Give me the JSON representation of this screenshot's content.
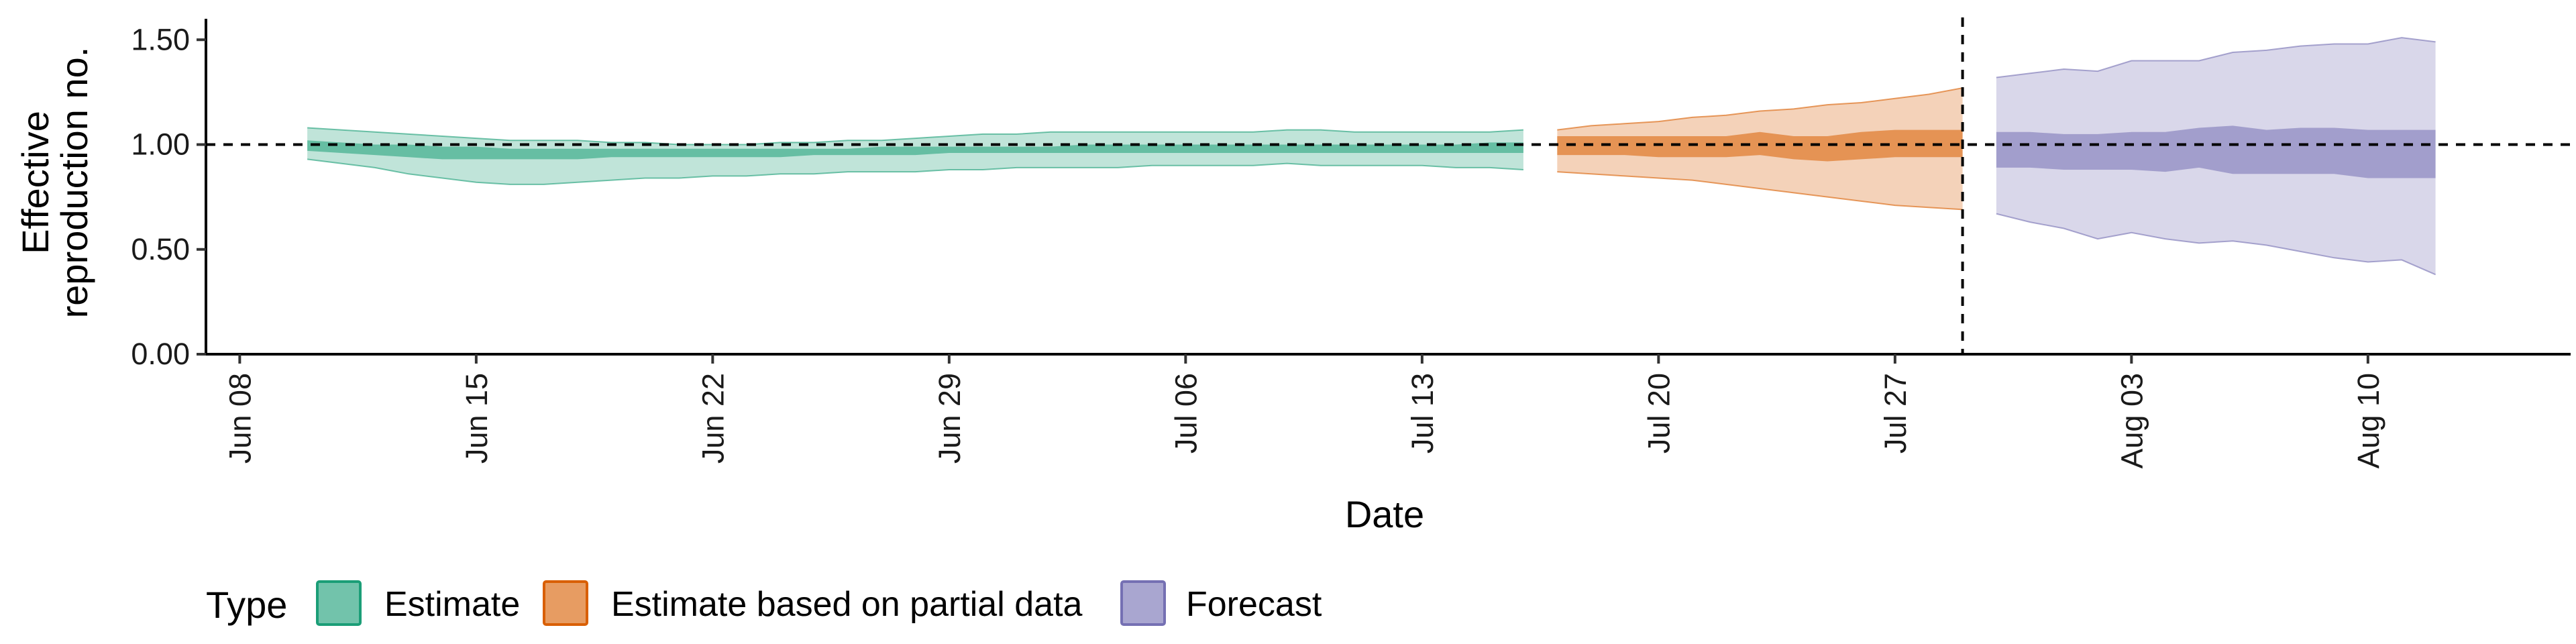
{
  "chart_data": {
    "type": "area",
    "xlabel": "Date",
    "ylabel_lines": [
      "Effective",
      "reproduction no."
    ],
    "ylim": [
      0,
      1.6
    ],
    "y_ticks": [
      0.0,
      0.5,
      1.0,
      1.5
    ],
    "y_tick_labels": [
      "0.00",
      "0.50",
      "1.00",
      "1.50"
    ],
    "x_range": [
      "2020-06-07",
      "2020-08-16"
    ],
    "x_ticks": [
      "2020-06-08",
      "2020-06-15",
      "2020-06-22",
      "2020-06-29",
      "2020-07-06",
      "2020-07-13",
      "2020-07-20",
      "2020-07-27",
      "2020-08-03",
      "2020-08-10"
    ],
    "x_tick_labels": [
      "Jun 08",
      "Jun 15",
      "Jun 22",
      "Jun 29",
      "Jul 06",
      "Jul 13",
      "Jul 20",
      "Jul 27",
      "Aug 03",
      "Aug 10"
    ],
    "reference_line_y": 1.0,
    "vertical_line_x": "2020-07-29",
    "legend": {
      "title": "Type",
      "position": "bottom-left",
      "items": [
        {
          "label": "Estimate",
          "color": "#1b9e77"
        },
        {
          "label": "Estimate based on partial data",
          "color": "#d95f02"
        },
        {
          "label": "Forecast",
          "color": "#7570b3"
        }
      ]
    },
    "series": [
      {
        "name": "Estimate",
        "color": "#1b9e77",
        "x": [
          "2020-06-10",
          "2020-06-11",
          "2020-06-12",
          "2020-06-13",
          "2020-06-14",
          "2020-06-15",
          "2020-06-16",
          "2020-06-17",
          "2020-06-18",
          "2020-06-19",
          "2020-06-20",
          "2020-06-21",
          "2020-06-22",
          "2020-06-23",
          "2020-06-24",
          "2020-06-25",
          "2020-06-26",
          "2020-06-27",
          "2020-06-28",
          "2020-06-29",
          "2020-06-30",
          "2020-07-01",
          "2020-07-02",
          "2020-07-03",
          "2020-07-04",
          "2020-07-05",
          "2020-07-06",
          "2020-07-07",
          "2020-07-08",
          "2020-07-09",
          "2020-07-10",
          "2020-07-11",
          "2020-07-12",
          "2020-07-13",
          "2020-07-14",
          "2020-07-15",
          "2020-07-16"
        ],
        "lower90": [
          0.93,
          0.91,
          0.89,
          0.86,
          0.84,
          0.82,
          0.81,
          0.81,
          0.82,
          0.83,
          0.84,
          0.84,
          0.85,
          0.85,
          0.86,
          0.86,
          0.87,
          0.87,
          0.87,
          0.88,
          0.88,
          0.89,
          0.89,
          0.89,
          0.89,
          0.9,
          0.9,
          0.9,
          0.9,
          0.91,
          0.9,
          0.9,
          0.9,
          0.9,
          0.89,
          0.89,
          0.88
        ],
        "upper90": [
          1.08,
          1.07,
          1.06,
          1.05,
          1.04,
          1.03,
          1.02,
          1.02,
          1.02,
          1.01,
          1.01,
          1.0,
          1.0,
          1.0,
          1.01,
          1.01,
          1.02,
          1.02,
          1.03,
          1.04,
          1.05,
          1.05,
          1.06,
          1.06,
          1.06,
          1.06,
          1.06,
          1.06,
          1.06,
          1.07,
          1.07,
          1.06,
          1.06,
          1.06,
          1.06,
          1.06,
          1.07
        ],
        "lower50": [
          0.97,
          0.96,
          0.95,
          0.94,
          0.93,
          0.93,
          0.93,
          0.93,
          0.93,
          0.94,
          0.94,
          0.94,
          0.94,
          0.94,
          0.94,
          0.95,
          0.95,
          0.95,
          0.95,
          0.96,
          0.96,
          0.96,
          0.96,
          0.96,
          0.96,
          0.96,
          0.96,
          0.96,
          0.96,
          0.96,
          0.96,
          0.96,
          0.96,
          0.96,
          0.96,
          0.96,
          0.96
        ],
        "upper50": [
          1.02,
          1.01,
          1.0,
          1.0,
          0.99,
          0.99,
          0.98,
          0.98,
          0.98,
          0.98,
          0.98,
          0.98,
          0.98,
          0.98,
          0.98,
          0.98,
          0.98,
          0.99,
          0.99,
          0.99,
          0.99,
          0.99,
          0.99,
          1.0,
          1.0,
          1.0,
          1.0,
          1.0,
          1.0,
          1.0,
          1.0,
          1.0,
          1.0,
          1.0,
          1.0,
          1.01,
          1.01
        ]
      },
      {
        "name": "Estimate based on partial data",
        "color": "#d95f02",
        "x": [
          "2020-07-17",
          "2020-07-18",
          "2020-07-19",
          "2020-07-20",
          "2020-07-21",
          "2020-07-22",
          "2020-07-23",
          "2020-07-24",
          "2020-07-25",
          "2020-07-26",
          "2020-07-27",
          "2020-07-28",
          "2020-07-29"
        ],
        "lower90": [
          0.87,
          0.86,
          0.85,
          0.84,
          0.83,
          0.81,
          0.79,
          0.77,
          0.75,
          0.73,
          0.71,
          0.7,
          0.69
        ],
        "upper90": [
          1.07,
          1.09,
          1.1,
          1.11,
          1.13,
          1.14,
          1.16,
          1.17,
          1.19,
          1.2,
          1.22,
          1.24,
          1.27
        ],
        "lower50": [
          0.95,
          0.95,
          0.95,
          0.94,
          0.94,
          0.94,
          0.95,
          0.93,
          0.92,
          0.93,
          0.94,
          0.94,
          0.94
        ],
        "upper50": [
          1.04,
          1.04,
          1.04,
          1.04,
          1.04,
          1.04,
          1.06,
          1.04,
          1.04,
          1.06,
          1.07,
          1.07,
          1.07
        ]
      },
      {
        "name": "Forecast",
        "color": "#7570b3",
        "x": [
          "2020-07-30",
          "2020-07-31",
          "2020-08-01",
          "2020-08-02",
          "2020-08-03",
          "2020-08-04",
          "2020-08-05",
          "2020-08-06",
          "2020-08-07",
          "2020-08-08",
          "2020-08-09",
          "2020-08-10",
          "2020-08-11",
          "2020-08-12"
        ],
        "lower90": [
          0.67,
          0.63,
          0.6,
          0.55,
          0.58,
          0.55,
          0.53,
          0.54,
          0.52,
          0.49,
          0.46,
          0.44,
          0.45,
          0.38
        ],
        "upper90": [
          1.32,
          1.34,
          1.36,
          1.35,
          1.4,
          1.4,
          1.4,
          1.44,
          1.45,
          1.47,
          1.48,
          1.48,
          1.51,
          1.49
        ],
        "lower50": [
          0.89,
          0.89,
          0.88,
          0.88,
          0.88,
          0.87,
          0.89,
          0.86,
          0.86,
          0.86,
          0.86,
          0.84,
          0.84,
          0.84
        ],
        "upper50": [
          1.06,
          1.06,
          1.05,
          1.05,
          1.06,
          1.06,
          1.08,
          1.09,
          1.07,
          1.08,
          1.08,
          1.07,
          1.07,
          1.07
        ]
      }
    ]
  }
}
